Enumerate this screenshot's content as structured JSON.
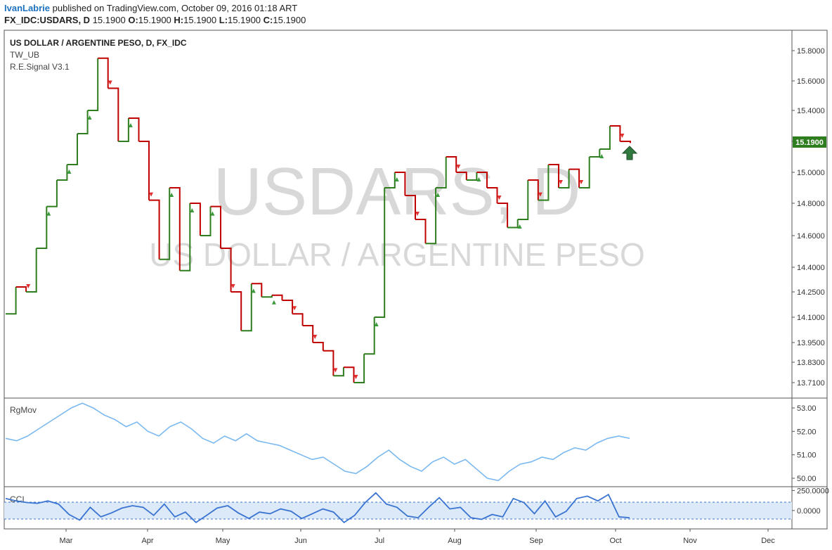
{
  "header": {
    "author": "IvanLabrie",
    "published_text": "published on TradingView.com, October 09, 2016 01:18 ART",
    "symbol": "FX_IDC:USDARS, D",
    "close_price": "15.1900",
    "o_label": "O:",
    "o_value": "15.1900",
    "h_label": "H:",
    "h_value": "15.1900",
    "l_label": "L:",
    "l_value": "15.1900",
    "c_label": "C:",
    "c_value": "15.1900"
  },
  "legend": {
    "title": "US DOLLAR / ARGENTINE PESO, D, FX_IDC",
    "indicator1": "TW_UB",
    "indicator2": "R.E.Signal V3.1"
  },
  "watermark": {
    "line1": "USDARS, D",
    "line2": "US DOLLAR / ARGENTINE PESO"
  },
  "panes": {
    "rgmov_label": "RgMov",
    "cci_label": "CCI"
  },
  "last_price_badge": "15.1900",
  "colors": {
    "up": "#2e7d1e",
    "down": "#c00000",
    "rgmov_line": "#7ab8f0",
    "cci_line": "#3a74d1",
    "cci_band": "#dce9f8",
    "badge": "#2e7d1e",
    "arrow": "#2f7a3c",
    "watermark": "#d8d8d8"
  },
  "chart_data": [
    {
      "type": "ohlc-step",
      "title": "US DOLLAR / ARGENTINE PESO, D, FX_IDC",
      "x_labels": [
        "Mar",
        "Apr",
        "May",
        "Jun",
        "Jul",
        "Aug",
        "Sep",
        "Oct",
        "Nov",
        "Dec"
      ],
      "y_ticks": [
        "15.8000",
        "15.6000",
        "15.4000",
        "15.2000",
        "15.0000",
        "14.8000",
        "14.6000",
        "14.4000",
        "14.2500",
        "14.1000",
        "13.9500",
        "13.8300",
        "13.7100"
      ],
      "approx_closes": [
        14.12,
        14.28,
        14.25,
        14.52,
        14.78,
        14.95,
        15.05,
        15.25,
        15.4,
        15.75,
        15.55,
        15.2,
        15.35,
        15.2,
        14.82,
        14.45,
        14.9,
        14.38,
        14.8,
        14.6,
        14.78,
        14.52,
        14.25,
        14.02,
        14.3,
        14.22,
        14.23,
        14.2,
        14.12,
        14.05,
        13.95,
        13.9,
        13.75,
        13.8,
        13.71,
        13.88,
        14.1,
        14.9,
        15.0,
        14.85,
        14.7,
        14.55,
        14.9,
        15.1,
        15.0,
        14.95,
        15.0,
        14.9,
        14.8,
        14.65,
        14.7,
        14.95,
        14.82,
        15.05,
        14.9,
        15.02,
        14.9,
        15.1,
        15.15,
        15.3,
        15.2,
        15.19
      ],
      "last_value": "15.1900"
    },
    {
      "type": "line",
      "name": "RgMov",
      "y_ticks": [
        "53.00",
        "52.00",
        "51.00",
        "50.00"
      ],
      "values": [
        51.7,
        51.6,
        51.8,
        52.1,
        52.4,
        52.7,
        53.0,
        53.2,
        53.0,
        52.7,
        52.5,
        52.2,
        52.4,
        52.0,
        51.8,
        52.2,
        52.4,
        52.1,
        51.7,
        51.5,
        51.8,
        51.6,
        51.9,
        51.6,
        51.5,
        51.4,
        51.2,
        51.0,
        50.8,
        50.9,
        50.6,
        50.3,
        50.2,
        50.5,
        50.9,
        51.2,
        50.8,
        50.5,
        50.3,
        50.7,
        50.9,
        50.6,
        50.8,
        50.4,
        50.0,
        49.9,
        50.3,
        50.6,
        50.7,
        50.9,
        50.8,
        51.1,
        51.3,
        51.2,
        51.5,
        51.7,
        51.8,
        51.7
      ],
      "ylim": [
        49.7,
        53.3
      ]
    },
    {
      "type": "line",
      "name": "CCI",
      "y_ticks": [
        "250.0000",
        "0.0000"
      ],
      "values": [
        150,
        120,
        100,
        90,
        120,
        80,
        -50,
        -120,
        40,
        -80,
        -30,
        30,
        60,
        40,
        -60,
        80,
        -80,
        -20,
        -150,
        -60,
        30,
        60,
        -30,
        -100,
        -20,
        -40,
        20,
        -10,
        -100,
        -40,
        20,
        -20,
        -150,
        -60,
        100,
        220,
        80,
        40,
        -70,
        -90,
        40,
        160,
        20,
        40,
        -90,
        -110,
        -50,
        -80,
        150,
        100,
        -40,
        120,
        -80,
        -10,
        150,
        180,
        120,
        200,
        -80,
        -90
      ],
      "bands": [
        100,
        -100
      ],
      "ylim": [
        -230,
        280
      ]
    }
  ]
}
